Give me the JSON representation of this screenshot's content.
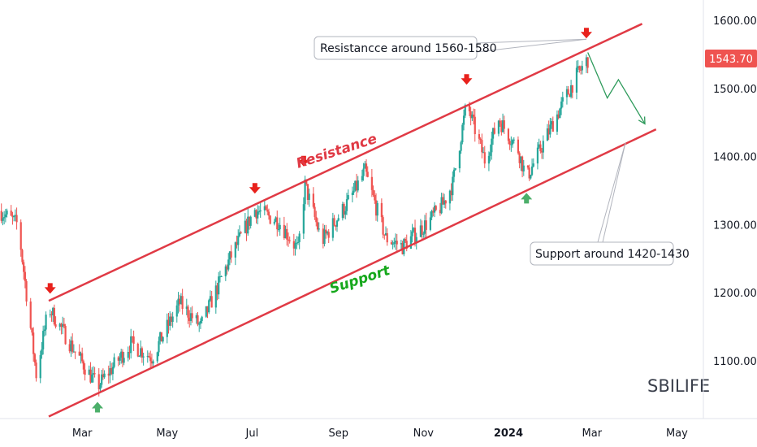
{
  "symbol": "SBILIFE",
  "last_price": "1543.70",
  "colors": {
    "up": "#26a69a",
    "down": "#ef5350",
    "channel": "#e03a45",
    "resistance_label": "#e03a45",
    "support_label": "#16a81c",
    "arrow_down": "#e8211c",
    "arrow_up": "#4caf6a",
    "projection": "#2e9a5b",
    "price_tag": "#ef5350"
  },
  "annotations": {
    "resistance_callout": "Resistancce around 1560-1580",
    "support_callout": "Support around 1420-1430",
    "resistance_label": "Resistance",
    "support_label": "Support"
  },
  "chart_data": {
    "type": "candlestick",
    "title": "",
    "y_ticks": [
      "1600.00",
      "1500.00",
      "1400.00",
      "1300.00",
      "1200.00",
      "1100.00"
    ],
    "x_ticks": [
      {
        "label": "Mar",
        "bold": false
      },
      {
        "label": "May",
        "bold": false
      },
      {
        "label": "Jul",
        "bold": false
      },
      {
        "label": "Sep",
        "bold": false
      },
      {
        "label": "Nov",
        "bold": false
      },
      {
        "label": "2024",
        "bold": true
      },
      {
        "label": "Mar",
        "bold": false
      },
      {
        "label": "May",
        "bold": false
      }
    ],
    "x_tick_dates": [
      "2023-03-01",
      "2023-05-01",
      "2023-07-01",
      "2023-09-01",
      "2023-11-01",
      "2024-01-01",
      "2024-03-01",
      "2024-05-01"
    ],
    "ylim": [
      1015,
      1630
    ],
    "xlim": [
      "2023-01-01",
      "2024-05-20"
    ],
    "resistance_line": {
      "from": [
        "2023-02-05",
        1188
      ],
      "to": [
        "2024-04-06",
        1595
      ]
    },
    "support_line": {
      "from": [
        "2023-02-05",
        1018
      ],
      "to": [
        "2024-04-16",
        1440
      ]
    },
    "projection": [
      [
        "2024-02-27",
        1553
      ],
      [
        "2024-03-12",
        1486
      ],
      [
        "2024-03-20",
        1513
      ],
      [
        "2024-04-08",
        1448
      ]
    ],
    "swing_highs": [
      [
        "2023-02-06",
        1183
      ],
      [
        "2023-07-03",
        1330
      ],
      [
        "2023-08-07",
        1370
      ],
      [
        "2023-12-02",
        1490
      ],
      [
        "2024-02-26",
        1558
      ]
    ],
    "swing_lows": [
      [
        "2023-03-12",
        1055
      ],
      [
        "2024-01-14",
        1362
      ]
    ],
    "trend_points": [
      [
        "2023-01-01",
        1320
      ],
      [
        "2023-01-14",
        1300
      ],
      [
        "2023-01-27",
        1080
      ],
      [
        "2023-02-05",
        1178
      ],
      [
        "2023-02-22",
        1120
      ],
      [
        "2023-03-12",
        1062
      ],
      [
        "2023-04-05",
        1125
      ],
      [
        "2023-04-20",
        1105
      ],
      [
        "2023-05-10",
        1185
      ],
      [
        "2023-05-25",
        1150
      ],
      [
        "2023-06-15",
        1250
      ],
      [
        "2023-07-03",
        1322
      ],
      [
        "2023-07-20",
        1305
      ],
      [
        "2023-08-03",
        1262
      ],
      [
        "2023-08-08",
        1358
      ],
      [
        "2023-08-20",
        1275
      ],
      [
        "2023-09-10",
        1340
      ],
      [
        "2023-09-20",
        1378
      ],
      [
        "2023-10-05",
        1280
      ],
      [
        "2023-10-17",
        1268
      ],
      [
        "2023-11-05",
        1305
      ],
      [
        "2023-11-15",
        1330
      ],
      [
        "2023-11-22",
        1360
      ],
      [
        "2023-12-02",
        1478
      ],
      [
        "2023-12-15",
        1395
      ],
      [
        "2023-12-25",
        1455
      ],
      [
        "2024-01-08",
        1410
      ],
      [
        "2024-01-14",
        1368
      ],
      [
        "2024-02-01",
        1445
      ],
      [
        "2024-02-18",
        1515
      ],
      [
        "2024-02-27",
        1543
      ]
    ]
  }
}
